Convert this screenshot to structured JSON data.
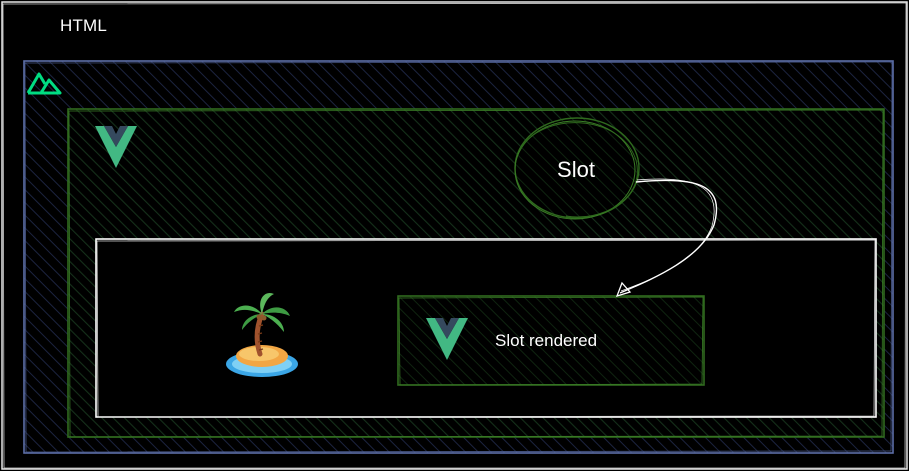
{
  "outer_label": "HTML",
  "slot_label": "Slot",
  "slot_rendered_label": "Slot rendered",
  "icons": {
    "framework_logo": "nuxt-logo-icon",
    "component_logo": "vue-logo-icon",
    "island": "island-icon"
  },
  "colors": {
    "background": "#000000",
    "outer_border": "#5d6fa8",
    "nuxt_green": "#00dc82",
    "vue_green": "#42b883",
    "vue_dark": "#35495e",
    "component_border": "#2f6a1e",
    "island_border": "#ffffff",
    "arrow": "#ffffff"
  }
}
